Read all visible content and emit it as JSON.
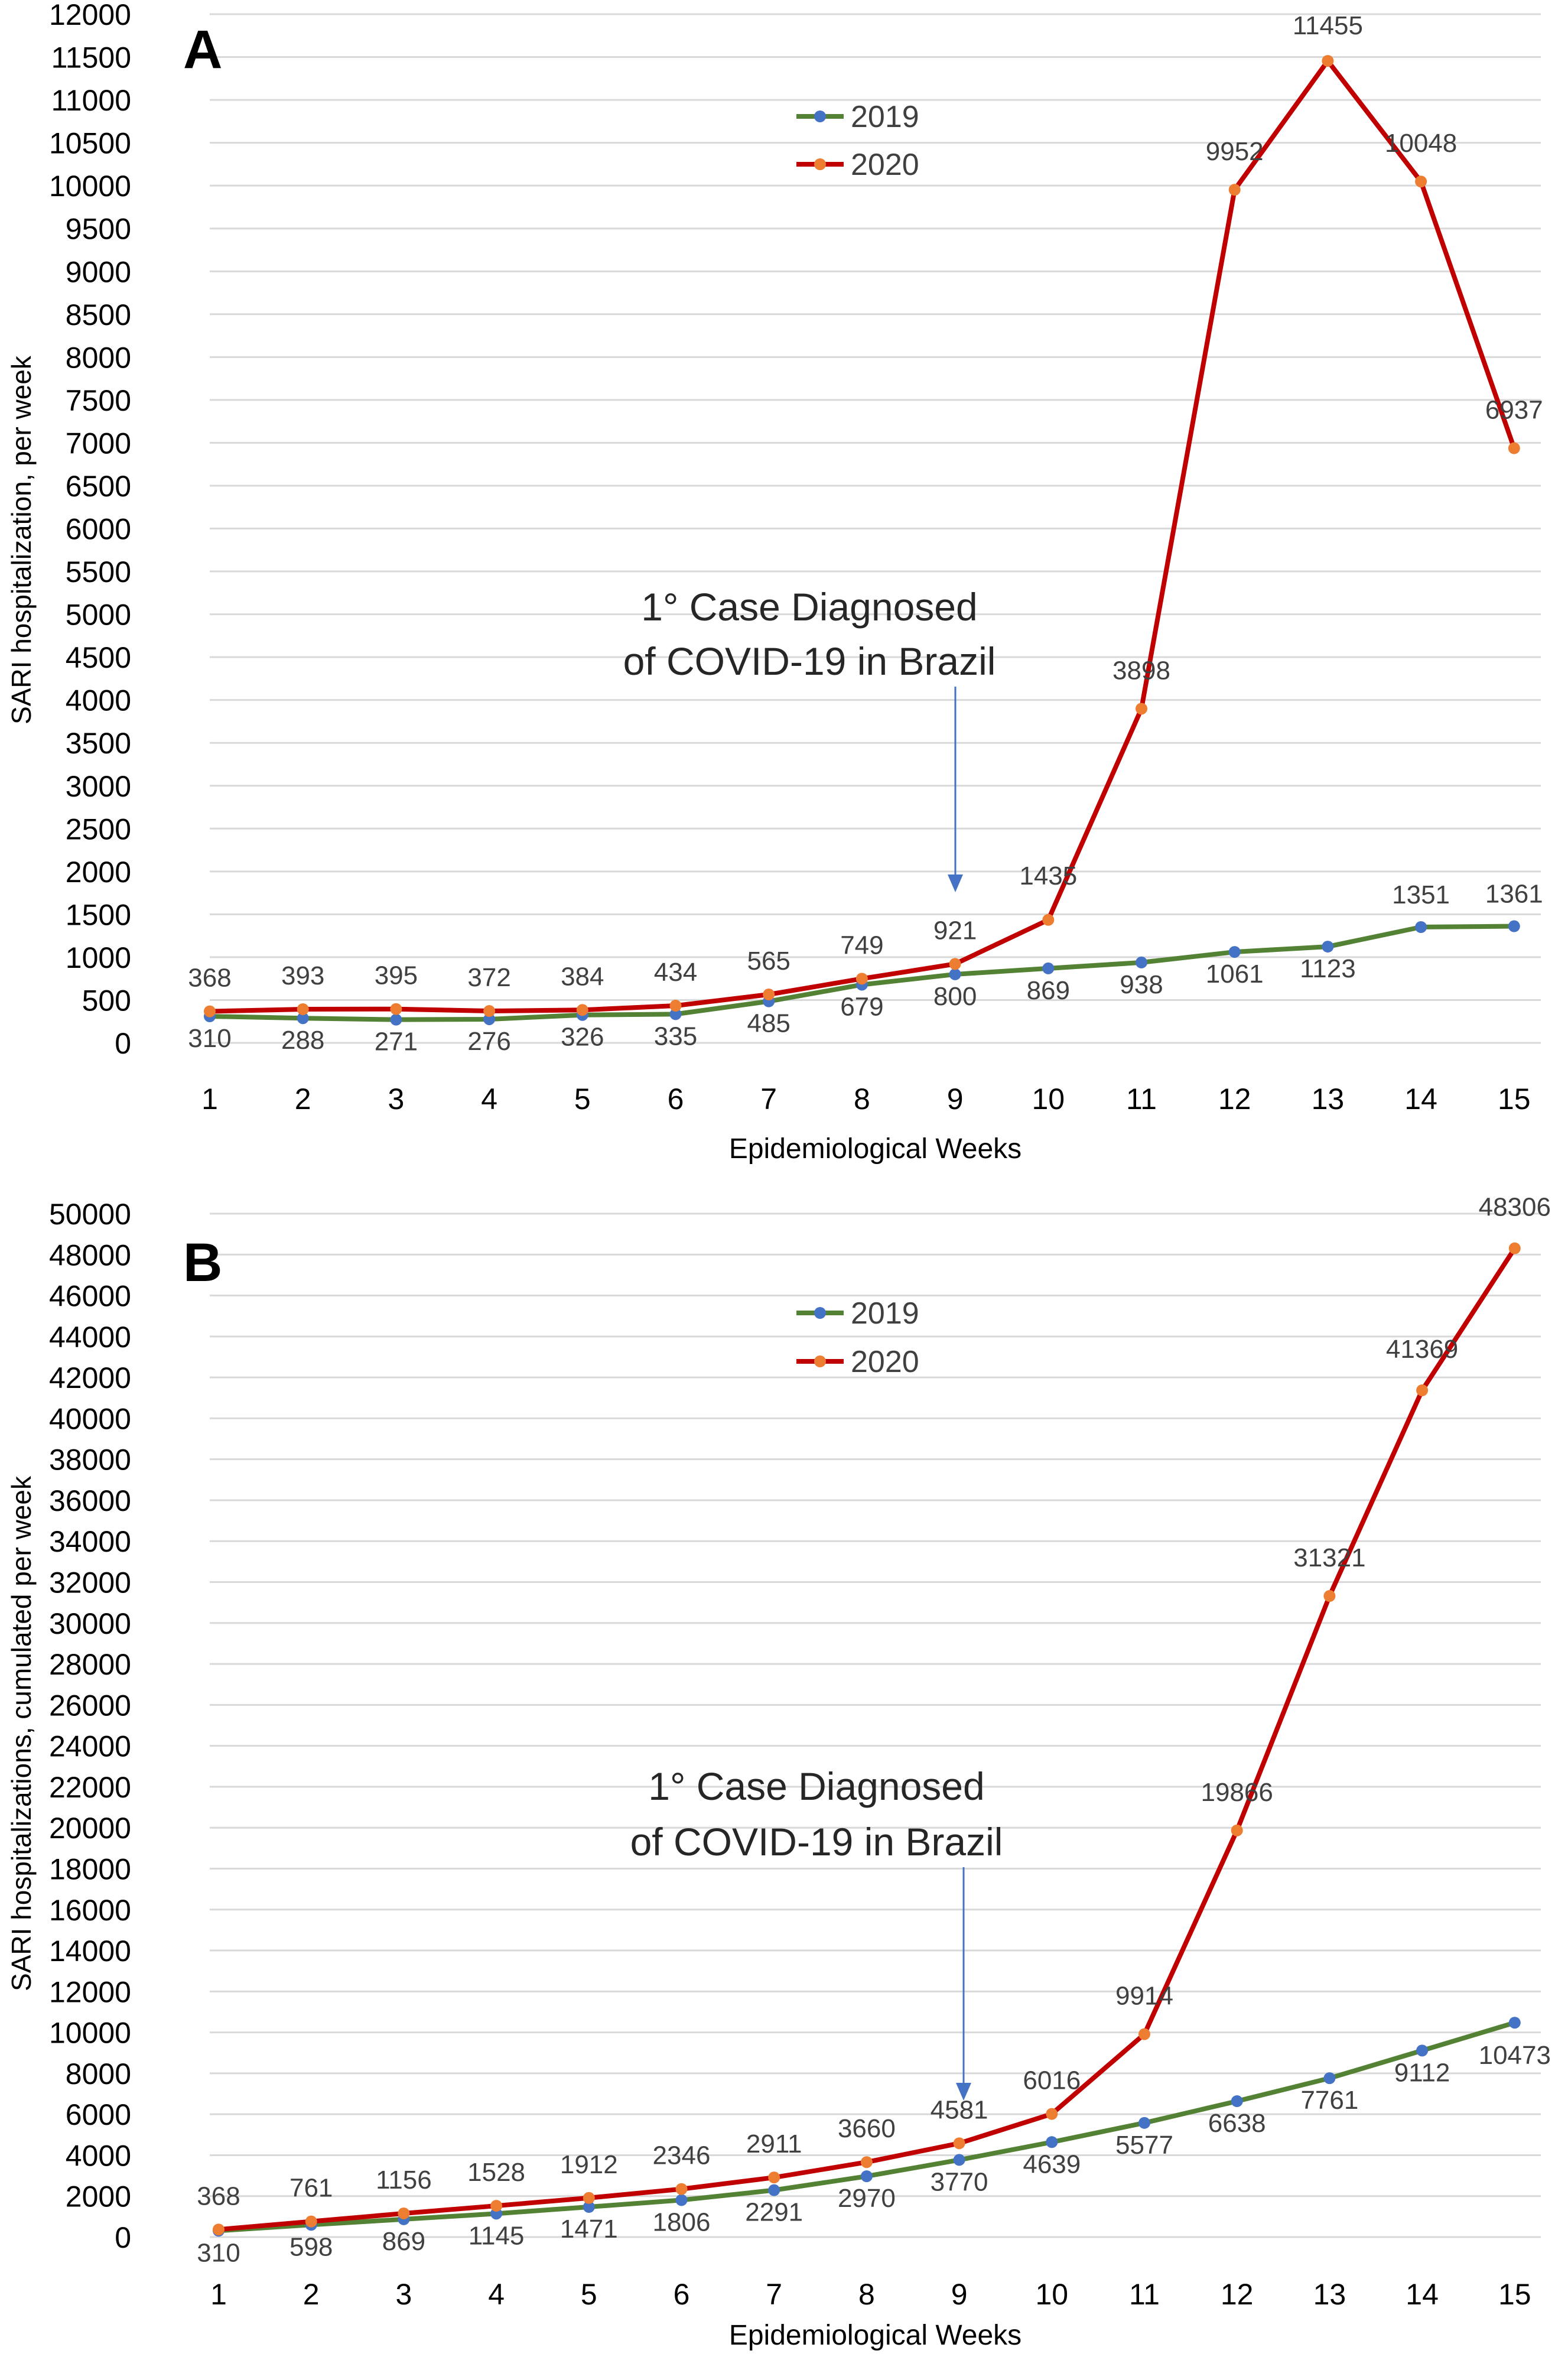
{
  "chart_data": [
    {
      "type": "line",
      "panel_label": "A",
      "title": "",
      "xlabel": "Epidemiological Weeks",
      "ylabel": "SARI hospitalization, per week",
      "categories": [
        "1",
        "2",
        "3",
        "4",
        "5",
        "6",
        "7",
        "8",
        "9",
        "10",
        "11",
        "12",
        "13",
        "14",
        "15"
      ],
      "ylim": [
        0,
        12000
      ],
      "yticks": [
        0,
        500,
        1000,
        1500,
        2000,
        2500,
        3000,
        3500,
        4000,
        4500,
        5000,
        5500,
        6000,
        6500,
        7000,
        7500,
        8000,
        8500,
        9000,
        9500,
        10000,
        10500,
        11000,
        11500,
        12000
      ],
      "grid": true,
      "legend": "top-center",
      "series": [
        {
          "name": "2019",
          "color": "#548235",
          "marker_color": "#4472C4",
          "values": [
            310,
            288,
            271,
            276,
            326,
            335,
            485,
            679,
            800,
            869,
            938,
            1061,
            1123,
            1351,
            1361
          ]
        },
        {
          "name": "2020",
          "color": "#C00000",
          "marker_color": "#ED7D31",
          "values": [
            368,
            393,
            395,
            372,
            384,
            434,
            565,
            749,
            921,
            1435,
            3898,
            9952,
            11455,
            10048,
            6937
          ]
        }
      ],
      "annotation": {
        "line1": "1° Case Diagnosed",
        "line2": "of COVID-19 in Brazil",
        "arrow_x": "9"
      }
    },
    {
      "type": "line",
      "panel_label": "B",
      "title": "",
      "xlabel": "Epidemiological Weeks",
      "ylabel": "SARI hospitalizations, cumulated per week",
      "categories": [
        "1",
        "2",
        "3",
        "4",
        "5",
        "6",
        "7",
        "8",
        "9",
        "10",
        "11",
        "12",
        "13",
        "14",
        "15"
      ],
      "ylim": [
        0,
        50000
      ],
      "yticks": [
        0,
        2000,
        4000,
        6000,
        8000,
        10000,
        12000,
        14000,
        16000,
        18000,
        20000,
        22000,
        24000,
        26000,
        28000,
        30000,
        32000,
        34000,
        36000,
        38000,
        40000,
        42000,
        44000,
        46000,
        48000,
        50000
      ],
      "grid": true,
      "legend": "top-center",
      "series": [
        {
          "name": "2019",
          "color": "#548235",
          "marker_color": "#4472C4",
          "values": [
            310,
            598,
            869,
            1145,
            1471,
            1806,
            2291,
            2970,
            3770,
            4639,
            5577,
            6638,
            7761,
            9112,
            10473
          ]
        },
        {
          "name": "2020",
          "color": "#C00000",
          "marker_color": "#ED7D31",
          "values": [
            368,
            761,
            1156,
            1528,
            1912,
            2346,
            2911,
            3660,
            4581,
            6016,
            9914,
            19866,
            31321,
            41369,
            48306
          ]
        }
      ],
      "annotation": {
        "line1": "1° Case Diagnosed",
        "line2": "of COVID-19 in Brazil",
        "arrow_x": "9"
      }
    }
  ]
}
